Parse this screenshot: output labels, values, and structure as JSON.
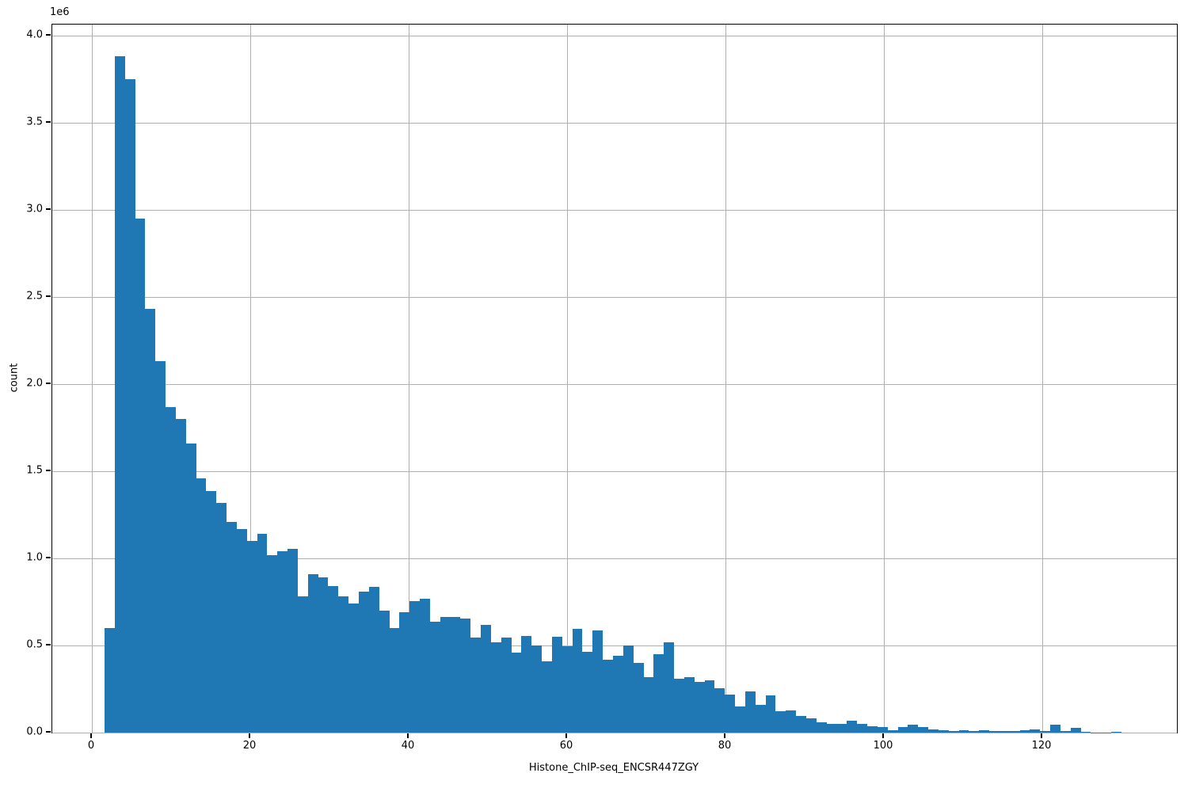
{
  "chart_data": {
    "type": "bar",
    "subtype": "histogram",
    "title": "",
    "xlabel": "Histone_ChIP-seq_ENCSR447ZGY",
    "ylabel": "count",
    "y_offset_label": "1e6",
    "bar_color": "#1f77b4",
    "grid_color": "#b0b0b0",
    "spine_color": "#000000",
    "text_color": "#000000",
    "grid": "on",
    "legend": "none",
    "xlim": [
      -5,
      137
    ],
    "ylim": [
      0,
      4064000
    ],
    "x_ticks": [
      0,
      20,
      40,
      60,
      80,
      100,
      120
    ],
    "x_tick_labels": [
      "0",
      "20",
      "40",
      "60",
      "80",
      "100",
      "120"
    ],
    "y_ticks": [
      0,
      500000,
      1000000,
      1500000,
      2000000,
      2500000,
      3000000,
      3500000,
      4000000
    ],
    "y_tick_labels": [
      "0.0",
      "0.5",
      "1.0",
      "1.5",
      "2.0",
      "2.5",
      "3.0",
      "3.5",
      "4.0"
    ],
    "bin_start": 1.6,
    "bin_width": 1.284,
    "counts": [
      600000,
      3880000,
      3750000,
      2950000,
      2430000,
      2130000,
      1870000,
      1800000,
      1660000,
      1460000,
      1385000,
      1320000,
      1210000,
      1170000,
      1100000,
      1140000,
      1020000,
      1040000,
      1055000,
      780000,
      910000,
      890000,
      840000,
      780000,
      740000,
      810000,
      835000,
      700000,
      600000,
      690000,
      755000,
      770000,
      635000,
      665000,
      665000,
      655000,
      545000,
      620000,
      520000,
      545000,
      460000,
      555000,
      500000,
      410000,
      550000,
      495000,
      595000,
      465000,
      585000,
      420000,
      440000,
      500000,
      400000,
      320000,
      450000,
      520000,
      310000,
      320000,
      290000,
      300000,
      253000,
      218000,
      150000,
      235000,
      160000,
      215000,
      124000,
      127000,
      95000,
      82000,
      60000,
      52000,
      50000,
      67000,
      48000,
      36000,
      30000,
      12000,
      30000,
      45000,
      30000,
      18000,
      15000,
      8000,
      12000,
      8000,
      12000,
      11000,
      8000,
      11000,
      15000,
      17000,
      8000,
      45000,
      10000,
      27000,
      4000,
      2000,
      2000,
      6000
    ]
  }
}
